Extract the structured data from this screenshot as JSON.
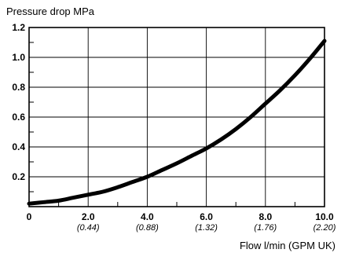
{
  "chart_data": {
    "type": "line",
    "title": "",
    "ylabel": "Pressure drop MPa",
    "xlabel": "Flow l/min (GPM UK)",
    "xlim": [
      0,
      10
    ],
    "ylim": [
      0,
      1.2
    ],
    "grid": true,
    "x_ticks": [
      {
        "value": 0,
        "label": "0",
        "sub": ""
      },
      {
        "value": 2,
        "label": "2.0",
        "sub": "(0.44)"
      },
      {
        "value": 4,
        "label": "4.0",
        "sub": "(0.88)"
      },
      {
        "value": 6,
        "label": "6.0",
        "sub": "(1.32)"
      },
      {
        "value": 8,
        "label": "8.0",
        "sub": "(1.76)"
      },
      {
        "value": 10,
        "label": "10.0",
        "sub": "(2.20)"
      }
    ],
    "y_ticks": [
      {
        "value": 0.2,
        "label": "0.2"
      },
      {
        "value": 0.4,
        "label": "0.4"
      },
      {
        "value": 0.6,
        "label": "0.6"
      },
      {
        "value": 0.8,
        "label": "0.8"
      },
      {
        "value": 1.0,
        "label": "1.0"
      },
      {
        "value": 1.2,
        "label": "1.2"
      }
    ],
    "series": [
      {
        "color": "#000000",
        "x": [
          0,
          0.5,
          1,
          1.5,
          2,
          2.5,
          3,
          3.5,
          4,
          4.5,
          5,
          5.5,
          6,
          6.5,
          7,
          7.5,
          8,
          8.5,
          9,
          9.5,
          10
        ],
        "y": [
          0.02,
          0.03,
          0.04,
          0.06,
          0.08,
          0.1,
          0.13,
          0.165,
          0.2,
          0.245,
          0.29,
          0.34,
          0.39,
          0.45,
          0.52,
          0.6,
          0.69,
          0.78,
          0.88,
          0.99,
          1.11
        ]
      }
    ]
  }
}
